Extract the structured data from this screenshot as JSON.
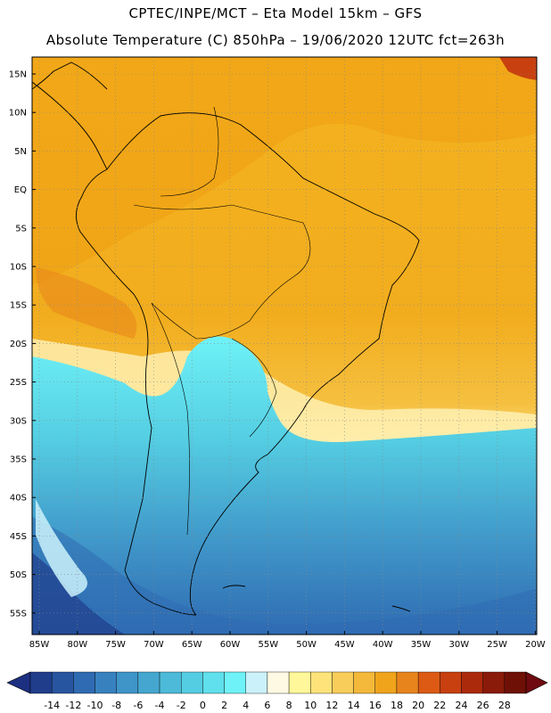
{
  "header": {
    "line1": "CPTEC/INPE/MCT –   Eta Model 15km – GFS",
    "line2": "Absolute Temperature (C) 850hPa – 19/06/2020 12UTC fct=263h"
  },
  "map": {
    "lat_labels": [
      "15N",
      "10N",
      "5N",
      "EQ",
      "5S",
      "10S",
      "15S",
      "20S",
      "25S",
      "30S",
      "35S",
      "40S",
      "45S",
      "50S",
      "55S"
    ],
    "lon_labels": [
      "85W",
      "80W",
      "75W",
      "70W",
      "65W",
      "60W",
      "55W",
      "50W",
      "45W",
      "40W",
      "35W",
      "30W",
      "25W",
      "20W"
    ]
  },
  "colorbar": {
    "labels": [
      "-14",
      "-12",
      "-10",
      "-8",
      "-6",
      "-4",
      "-2",
      "0",
      "2",
      "4",
      "6",
      "8",
      "10",
      "12",
      "14",
      "16",
      "18",
      "20",
      "22",
      "24",
      "26",
      "28"
    ],
    "colors": [
      "#1f3d8a",
      "#2855a0",
      "#2f6bb2",
      "#3781bf",
      "#3f95c8",
      "#45a7d0",
      "#4cbad8",
      "#54cde2",
      "#5fe0ec",
      "#6ff2f7",
      "#cbf2fb",
      "#fdf9e3",
      "#fff799",
      "#fde37a",
      "#f9cd5a",
      "#f4b93a",
      "#f0a41c",
      "#e8841c",
      "#dc5a14",
      "#c8400f",
      "#ac2a0c",
      "#8a1a0a",
      "#6e1005"
    ],
    "under_color": "#1c2f80",
    "over_color": "#6e0a10"
  }
}
